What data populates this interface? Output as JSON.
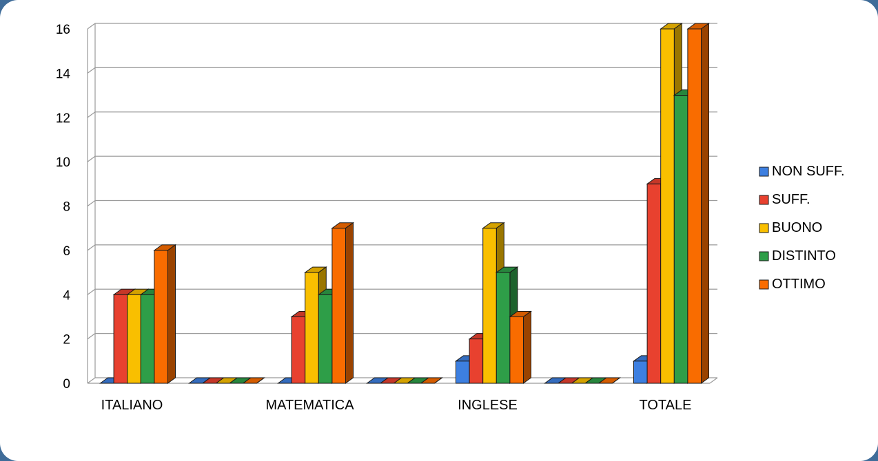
{
  "chart_data": {
    "type": "bar",
    "style": "3d-clustered-column",
    "categories": [
      "ITALIANO",
      "",
      "MATEMATICA",
      "",
      "INGLESE",
      "",
      "TOTALE"
    ],
    "series": [
      {
        "name": "NON SUFF.",
        "color": "#3d7fe0",
        "values": [
          0,
          0,
          0,
          0,
          1,
          0,
          1
        ]
      },
      {
        "name": "SUFF.",
        "color": "#e8412f",
        "values": [
          4,
          0,
          3,
          0,
          2,
          0,
          9
        ]
      },
      {
        "name": "BUONO",
        "color": "#f9bf00",
        "values": [
          4,
          0,
          5,
          0,
          7,
          0,
          16
        ]
      },
      {
        "name": "DISTINTO",
        "color": "#2e9e48",
        "values": [
          4,
          0,
          4,
          0,
          5,
          0,
          13
        ]
      },
      {
        "name": "OTTIMO",
        "color": "#f96c00",
        "values": [
          6,
          0,
          7,
          0,
          3,
          0,
          16
        ]
      }
    ],
    "y_ticks": [
      "0",
      "2",
      "4",
      "6",
      "8",
      "10",
      "12",
      "14",
      "16"
    ],
    "ylim": [
      0,
      16
    ],
    "grid": true,
    "legend_position": "right"
  }
}
